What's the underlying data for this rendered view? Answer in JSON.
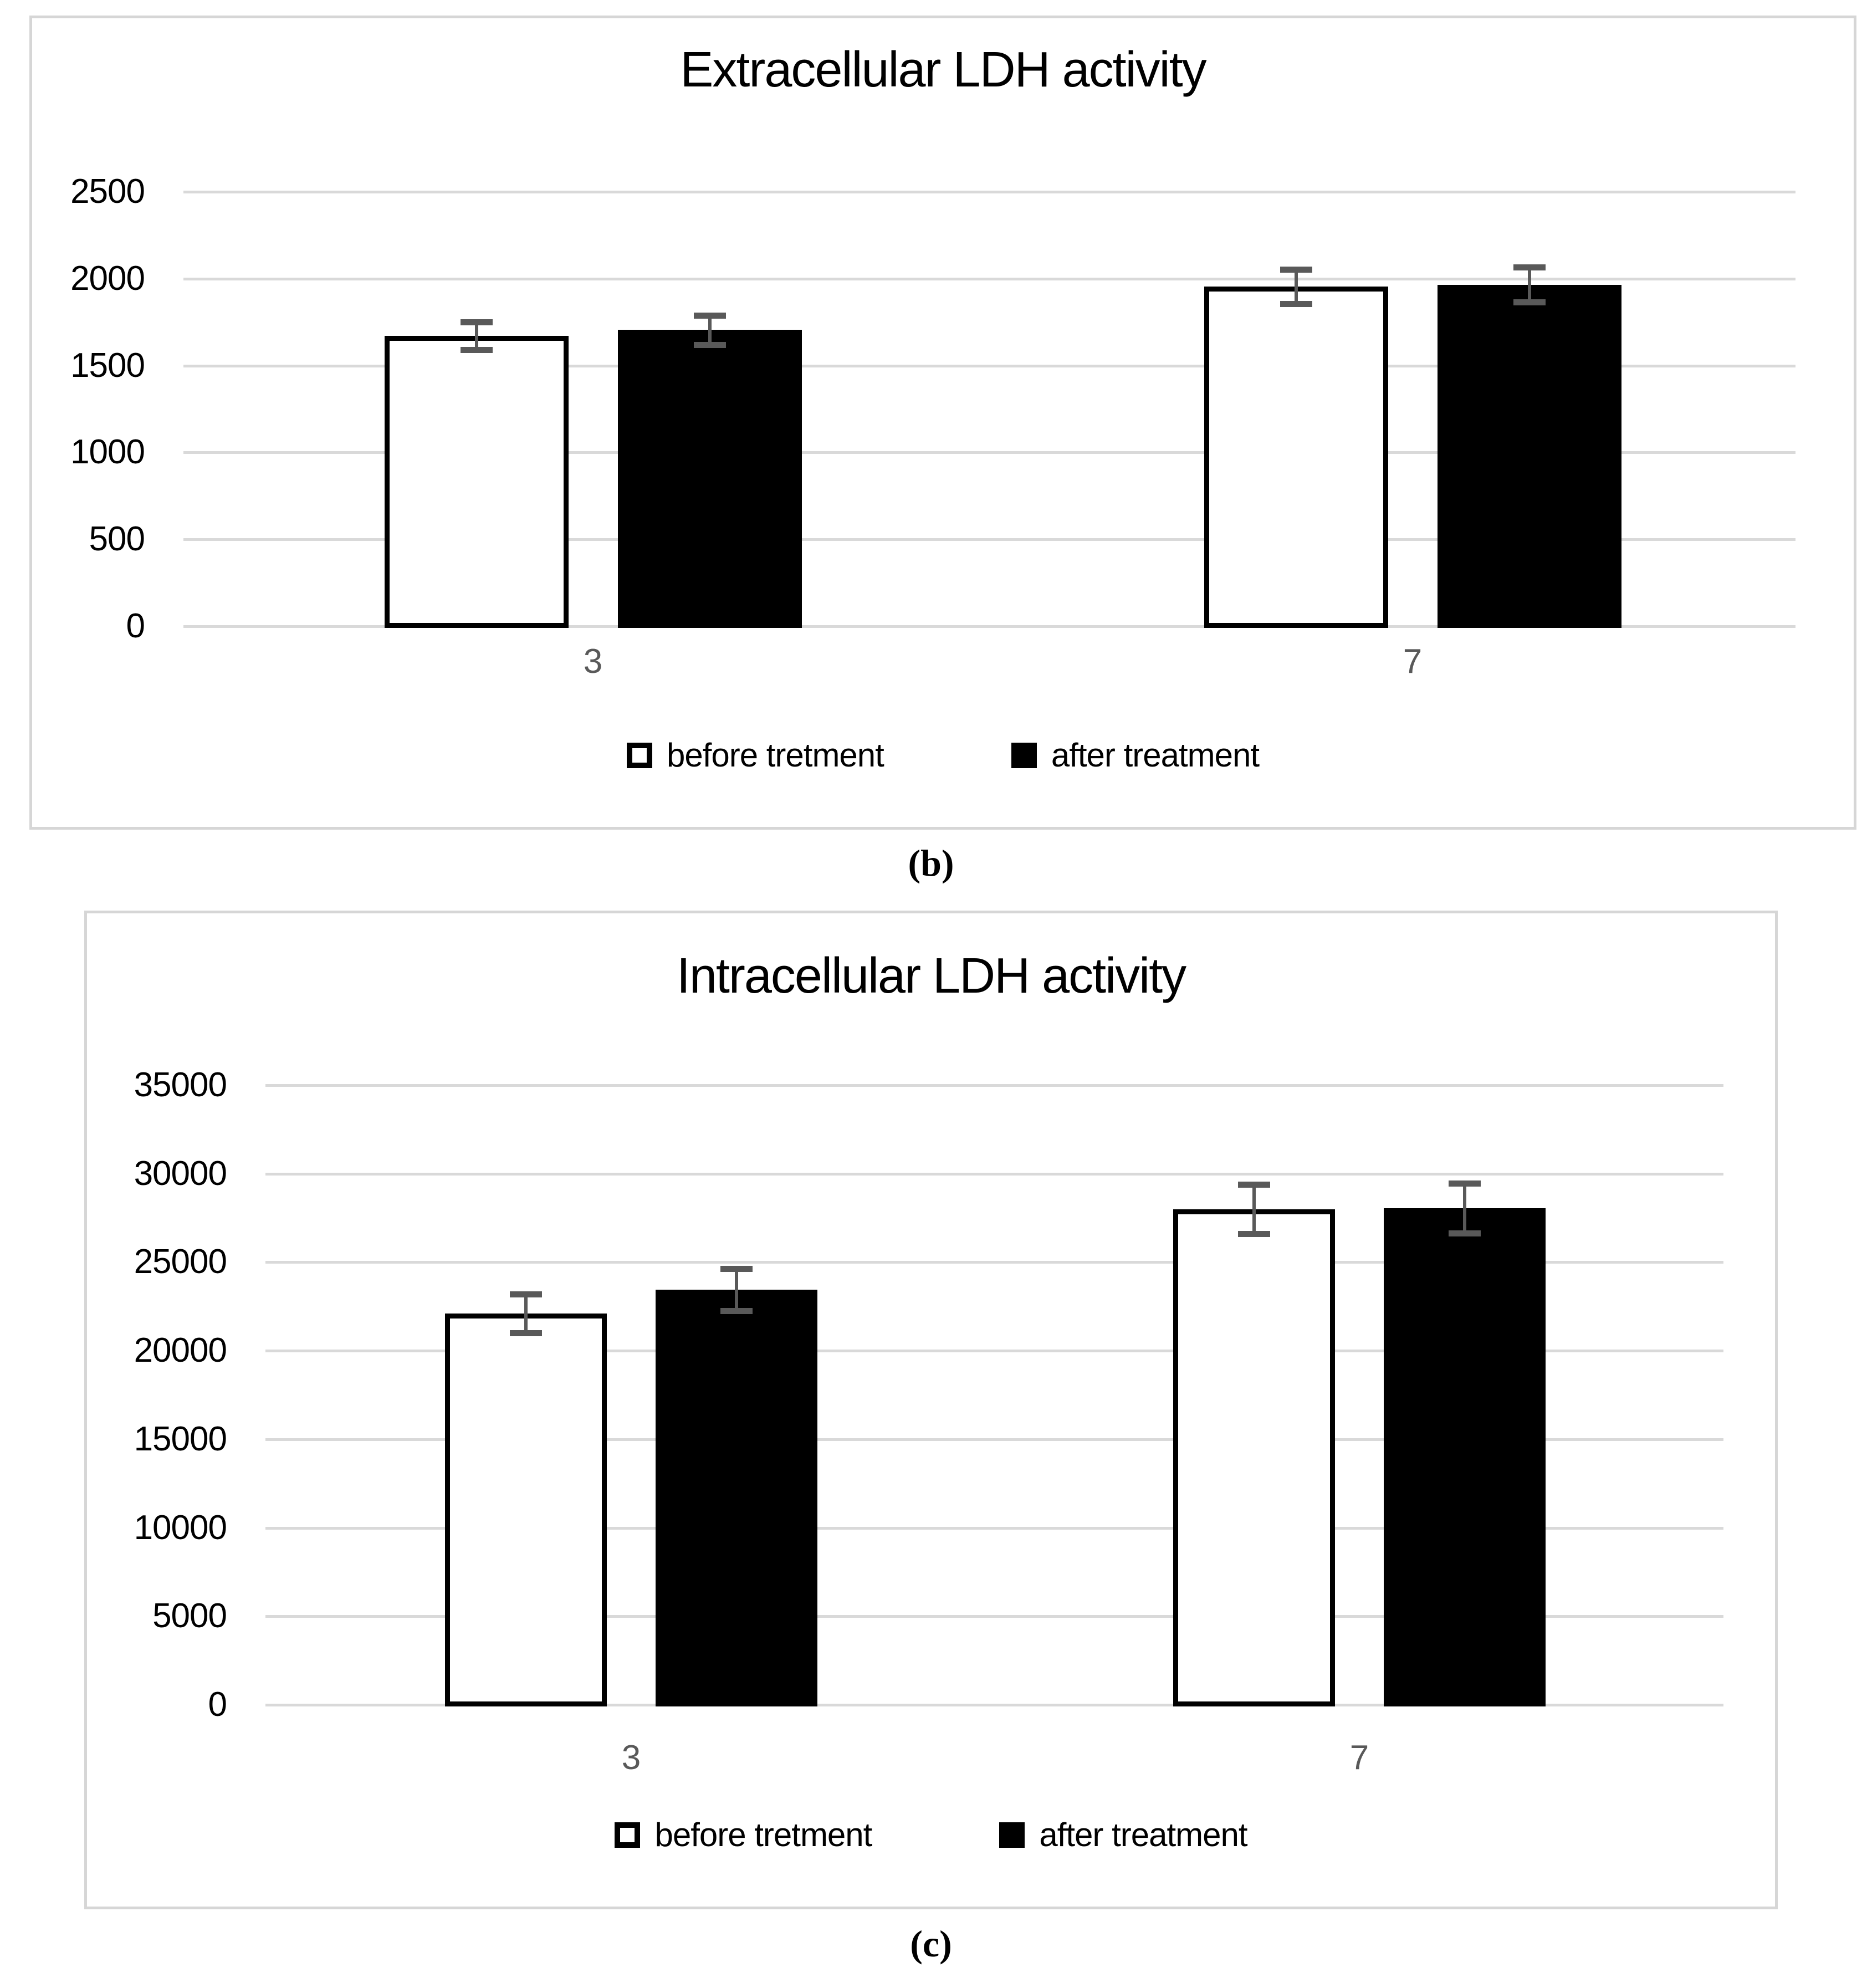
{
  "figure": {
    "captions": {
      "b": "(b)",
      "c": "(c)"
    }
  },
  "chart_data": [
    {
      "type": "bar",
      "title": "Extracellular LDH activity",
      "categories": [
        "3",
        "7"
      ],
      "series": [
        {
          "name": "before tretment",
          "fill": "#ffffff",
          "values": [
            1670,
            1955
          ],
          "errors": [
            80,
            100
          ]
        },
        {
          "name": "after treatment",
          "fill": "#000000",
          "values": [
            1705,
            1965
          ],
          "errors": [
            85,
            100
          ]
        }
      ],
      "ylim": [
        0,
        2500
      ],
      "yticks": [
        0,
        500,
        1000,
        1500,
        2000,
        2500
      ],
      "grid": true,
      "legend_position": "bottom",
      "caption": "(b)"
    },
    {
      "type": "bar",
      "title": "Intracellular LDH activity",
      "categories": [
        "3",
        "7"
      ],
      "series": [
        {
          "name": "before tretment",
          "fill": "#ffffff",
          "values": [
            22100,
            28000
          ],
          "errors": [
            1100,
            1400
          ]
        },
        {
          "name": "after treatment",
          "fill": "#000000",
          "values": [
            23450,
            28050
          ],
          "errors": [
            1200,
            1400
          ]
        }
      ],
      "ylim": [
        0,
        35000
      ],
      "yticks": [
        0,
        5000,
        10000,
        15000,
        20000,
        25000,
        30000,
        35000
      ],
      "grid": true,
      "legend_position": "bottom",
      "caption": "(c)"
    }
  ],
  "colors": {
    "grid": "#d9d9d9",
    "panel_border": "#d6d6d6",
    "error_bar": "#595959",
    "x_tick_label": "#595959",
    "y_tick_label": "#000000",
    "bar_outline": "#000000",
    "bar_open_fill": "#ffffff",
    "bar_solid_fill": "#000000"
  }
}
